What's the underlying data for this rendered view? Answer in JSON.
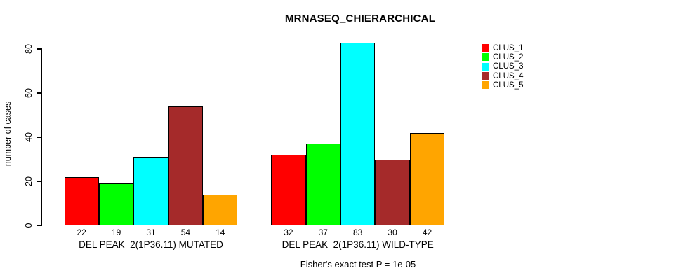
{
  "chart_data": {
    "type": "bar",
    "title": "MRNASEQ_CHIERARCHICAL",
    "ylabel": "number of cases",
    "xlabel": "",
    "yticks": [
      0,
      20,
      40,
      60,
      80
    ],
    "ylim": [
      0,
      86
    ],
    "grid": false,
    "legend_position": "right",
    "series": [
      "CLUS_1",
      "CLUS_2",
      "CLUS_3",
      "CLUS_4",
      "CLUS_5"
    ],
    "colors": [
      "#FF0000",
      "#00FF00",
      "#00FFFF",
      "#A52A2A",
      "#FFA500"
    ],
    "groups": [
      {
        "label": "DEL PEAK  2(1P36.11) MUTATED",
        "values": [
          22,
          19,
          31,
          54,
          14
        ]
      },
      {
        "label": "DEL PEAK  2(1P36.11) WILD-TYPE",
        "values": [
          32,
          37,
          83,
          30,
          42
        ]
      }
    ],
    "bar_value_labels_shown": true,
    "annotation": "Fisher's exact test P = 1e-05"
  }
}
